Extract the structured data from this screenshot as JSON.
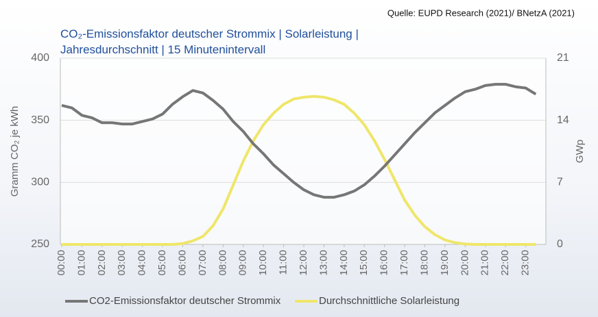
{
  "chart_data": {
    "type": "line",
    "title": "CO₂-Emissionsfaktor deutscher Strommix | Solarleistung | Jahresdurchschnitt | 15 Minutenintervall",
    "source": "Quelle: EUPD Research (2021)/ BNetzA (2021)",
    "ylabel": "Gramm CO₂ je kWh",
    "y2label": "GWp",
    "grid": true,
    "xlim": [
      0,
      24
    ],
    "xticks": [
      {
        "value": 0,
        "label": "00:00"
      },
      {
        "value": 1,
        "label": "01:00"
      },
      {
        "value": 2,
        "label": "02:00"
      },
      {
        "value": 3,
        "label": "03:00"
      },
      {
        "value": 4,
        "label": "04:00"
      },
      {
        "value": 5,
        "label": "05:00"
      },
      {
        "value": 6,
        "label": "06:00"
      },
      {
        "value": 7,
        "label": "07:00"
      },
      {
        "value": 8,
        "label": "08:00"
      },
      {
        "value": 9,
        "label": "09:00"
      },
      {
        "value": 10,
        "label": "10:00"
      },
      {
        "value": 11,
        "label": "11:00"
      },
      {
        "value": 12,
        "label": "12:00"
      },
      {
        "value": 13,
        "label": "13:00"
      },
      {
        "value": 14,
        "label": "14:00"
      },
      {
        "value": 15,
        "label": "15:00"
      },
      {
        "value": 16,
        "label": "16:00"
      },
      {
        "value": 17,
        "label": "17:00"
      },
      {
        "value": 18,
        "label": "18:00"
      },
      {
        "value": 19,
        "label": "19:00"
      },
      {
        "value": 20,
        "label": "20:00"
      },
      {
        "value": 21,
        "label": "21:00"
      },
      {
        "value": 22,
        "label": "22:00"
      },
      {
        "value": 23,
        "label": "23:00"
      }
    ],
    "ylim": [
      250,
      400
    ],
    "yticks": [
      250,
      300,
      350,
      400
    ],
    "y2lim": [
      0,
      21
    ],
    "y2ticks": [
      0,
      7,
      14,
      21
    ],
    "x": [
      0,
      0.5,
      1,
      1.5,
      2,
      2.5,
      3,
      3.5,
      4,
      4.5,
      5,
      5.5,
      6,
      6.5,
      7,
      7.5,
      8,
      8.5,
      9,
      9.5,
      10,
      10.5,
      11,
      11.5,
      12,
      12.5,
      13,
      13.5,
      14,
      14.5,
      15,
      15.5,
      16,
      16.5,
      17,
      17.5,
      18,
      18.5,
      19,
      19.5,
      20,
      20.5,
      21,
      21.5,
      22,
      22.5,
      23,
      23.5
    ],
    "series": [
      {
        "name": "CO2-Emissionsfaktor deutscher Strommix",
        "color": "#767676",
        "axis": "y",
        "values": [
          362,
          360,
          354,
          352,
          348,
          348,
          347,
          347,
          349,
          351,
          355,
          363,
          369,
          374,
          372,
          366,
          359,
          349,
          341,
          331,
          323,
          314,
          307,
          300,
          294,
          290,
          288,
          288,
          290,
          293,
          298,
          305,
          313,
          322,
          331,
          340,
          348,
          356,
          362,
          368,
          373,
          375,
          378,
          379,
          379,
          377,
          376,
          371
        ]
      },
      {
        "name": "Durchschnittliche Solarleistung",
        "color": "#efe66a",
        "axis": "y2",
        "values": [
          0,
          0,
          0,
          0,
          0,
          0,
          0,
          0,
          0,
          0,
          0,
          0,
          0.1,
          0.4,
          0.9,
          2.1,
          4,
          6.7,
          9.4,
          11.7,
          13.5,
          14.8,
          15.8,
          16.4,
          16.6,
          16.7,
          16.6,
          16.3,
          15.8,
          14.8,
          13.5,
          11.7,
          9.6,
          7.3,
          5,
          3.3,
          2,
          1.1,
          0.5,
          0.2,
          0.05,
          0,
          0,
          0,
          0,
          0,
          0,
          0
        ]
      }
    ]
  }
}
